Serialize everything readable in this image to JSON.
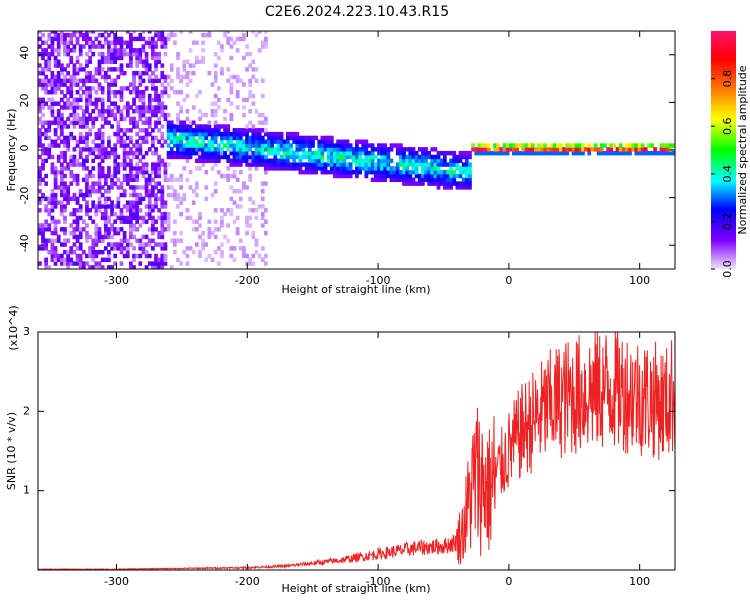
{
  "title": "C2E6.2024.223.10.43.R15",
  "chart_data": [
    {
      "type": "heatmap",
      "xlabel": "Height of straight line (km)",
      "ylabel": "Frequency (Hz)",
      "xlim": [
        -360,
        127
      ],
      "ylim": [
        -50,
        50
      ],
      "xticks": [
        -300,
        -200,
        -100,
        0,
        100
      ],
      "yticks": [
        -40,
        -20,
        0,
        20,
        40
      ],
      "xtick_labels": [
        "-300",
        "-200",
        "-100",
        "0",
        "100"
      ],
      "ytick_labels": [
        "-40",
        "-20",
        "0",
        "20",
        "40"
      ],
      "colorbar": {
        "label": "Normalized spectral amplitude",
        "range": [
          0,
          1
        ],
        "ticks": [
          0.0,
          0.2,
          0.4,
          0.6,
          0.8
        ],
        "tick_labels": [
          "0.0",
          "0.2",
          "0.4",
          "0.6",
          "0.8"
        ],
        "colors": [
          "#f0e4ff",
          "#8000ff",
          "#0000ff",
          "#00ffff",
          "#00ff00",
          "#ffff00",
          "#ff8000",
          "#ff0000",
          "#ff1070"
        ]
      },
      "regions": [
        {
          "x_range": [
            -360,
            -262
          ],
          "freq_range": [
            -50,
            50
          ],
          "amplitude": 0.1
        },
        {
          "x_range": [
            -262,
            -185
          ],
          "freq_range": [
            -50,
            50
          ],
          "amplitude": 0.03
        },
        {
          "x_range": [
            -262,
            -30
          ],
          "freq_center": [
            4,
            -10
          ],
          "freq_halfwidth": 8,
          "amplitude": 0.35
        },
        {
          "x_range": [
            -30,
            127
          ],
          "freq_center": [
            0,
            0
          ],
          "freq_halfwidth": 2,
          "amplitude": 0.85
        }
      ]
    },
    {
      "type": "line",
      "xlabel": "Height of straight line (km)",
      "ylabel": "SNR (10 * v/v)",
      "y_multiplier": "(x10^4)",
      "xlim": [
        -360,
        127
      ],
      "ylim": [
        0,
        3
      ],
      "xticks": [
        -300,
        -200,
        -100,
        0,
        100
      ],
      "yticks": [
        1,
        2,
        3
      ],
      "xtick_labels": [
        "-300",
        "-200",
        "-100",
        "0",
        "100"
      ],
      "ytick_labels": [
        "1",
        "2",
        "3"
      ],
      "series": [
        {
          "color": "#ee2222",
          "x": [
            -360,
            -300,
            -250,
            -200,
            -170,
            -130,
            -100,
            -70,
            -50,
            -40,
            -35,
            -30,
            -25,
            -20,
            -15,
            -10,
            0,
            10,
            20,
            30,
            40,
            60,
            80,
            100,
            110,
            120,
            127
          ],
          "y": [
            0.01,
            0.01,
            0.02,
            0.03,
            0.05,
            0.12,
            0.2,
            0.28,
            0.3,
            0.35,
            0.5,
            0.9,
            1.2,
            1.1,
            1.0,
            1.2,
            1.5,
            1.75,
            1.9,
            2.05,
            2.15,
            2.25,
            2.3,
            2.2,
            2.15,
            2.1,
            2.25
          ]
        }
      ]
    }
  ]
}
